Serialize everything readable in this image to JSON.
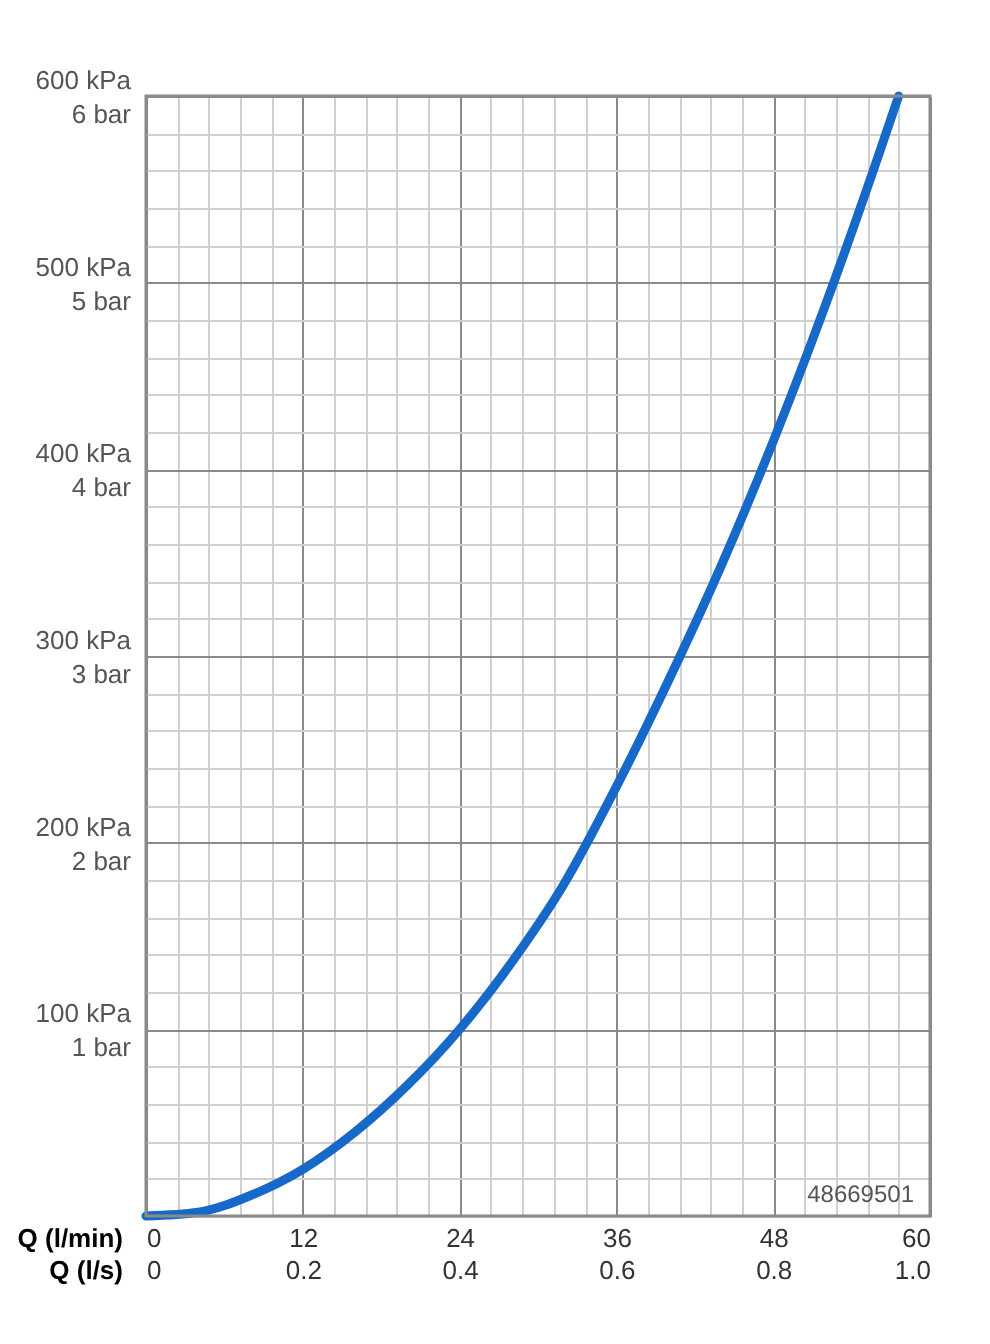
{
  "chart_data": {
    "type": "line",
    "xlabel": "Q (l/min)",
    "x2label": "Q (l/s)",
    "x": [
      0,
      4,
      8,
      12,
      16,
      20,
      24,
      28,
      32,
      36,
      40,
      44,
      48,
      52,
      56,
      57.6
    ],
    "series": [
      {
        "color": "#1769c9",
        "values": [
          0,
          2,
          11,
          25,
          45,
          70,
          100,
          136,
          178,
          230,
          287,
          348,
          415,
          488,
          567,
          600
        ]
      }
    ],
    "xlim": [
      0,
      60
    ],
    "xticks": [
      0,
      {
        "value": 2.4,
        "label": null
      },
      {
        "value": 4.8,
        "label": null
      },
      {
        "value": 7.2,
        "label": null
      },
      {
        "value": 9.6,
        "label": null
      },
      12,
      {
        "value": 14.4,
        "label": null
      },
      {
        "value": 16.8,
        "label": null
      },
      {
        "value": 19.2,
        "label": null
      },
      {
        "value": 21.6,
        "label": null
      },
      24,
      {
        "value": 26.4,
        "label": null
      },
      {
        "value": 28.8,
        "label": null
      },
      {
        "value": 31.2,
        "label": null
      },
      {
        "value": 33.6,
        "label": null
      },
      36,
      {
        "value": 38.4,
        "label": null
      },
      {
        "value": 40.8,
        "label": null
      },
      {
        "value": 43.2,
        "label": null
      },
      {
        "value": 45.6,
        "label": null
      },
      48,
      {
        "value": 50.4,
        "label": null
      },
      {
        "value": 52.8,
        "label": null
      },
      {
        "value": 55.2,
        "label": null
      },
      {
        "value": 57.6,
        "label": null
      },
      60
    ],
    "x2lim": [
      0,
      1
    ],
    "x2ticks": [
      0,
      0.2,
      0.4,
      0.6,
      0.8,
      {
        "value": 1,
        "label": "1.0"
      }
    ],
    "ylim": [
      0,
      600
    ],
    "yticks": [
      {
        "value": 0,
        "label": null
      },
      {
        "value": 20,
        "label": null
      },
      {
        "value": 40,
        "label": null
      },
      {
        "value": 60,
        "label": null
      },
      {
        "value": 80,
        "label": null
      },
      {
        "value": 100,
        "label": "100 kPa"
      },
      {
        "value": 120,
        "label": null
      },
      {
        "value": 140,
        "label": null
      },
      {
        "value": 160,
        "label": null
      },
      {
        "value": 180,
        "label": null
      },
      {
        "value": 200,
        "label": "200 kPa"
      },
      {
        "value": 220,
        "label": null
      },
      {
        "value": 240,
        "label": null
      },
      {
        "value": 260,
        "label": null
      },
      {
        "value": 280,
        "label": null
      },
      {
        "value": 300,
        "label": "300 kPa"
      },
      {
        "value": 320,
        "label": null
      },
      {
        "value": 340,
        "label": null
      },
      {
        "value": 360,
        "label": null
      },
      {
        "value": 380,
        "label": null
      },
      {
        "value": 400,
        "label": "400 kPa"
      },
      {
        "value": 420,
        "label": null
      },
      {
        "value": 440,
        "label": null
      },
      {
        "value": 460,
        "label": null
      },
      {
        "value": 480,
        "label": null
      },
      {
        "value": 500,
        "label": "500 kPa"
      },
      {
        "value": 520,
        "label": null
      },
      {
        "value": 540,
        "label": null
      },
      {
        "value": 560,
        "label": null
      },
      {
        "value": 580,
        "label": null
      },
      {
        "value": 600,
        "label": "600 kPa"
      }
    ],
    "y2lim": [
      0,
      6
    ],
    "y2ticks": [
      {
        "value": 1,
        "label": "1 bar"
      },
      {
        "value": 2,
        "label": "2 bar"
      },
      {
        "value": 3,
        "label": "3 bar"
      },
      {
        "value": 4,
        "label": "4 bar"
      },
      {
        "value": 5,
        "label": "5 bar"
      },
      {
        "value": 6,
        "label": "6 bar"
      }
    ],
    "grid": true,
    "line_style": "solid",
    "marker": "none",
    "legend": false,
    "annotations": [
      "48669501"
    ]
  }
}
